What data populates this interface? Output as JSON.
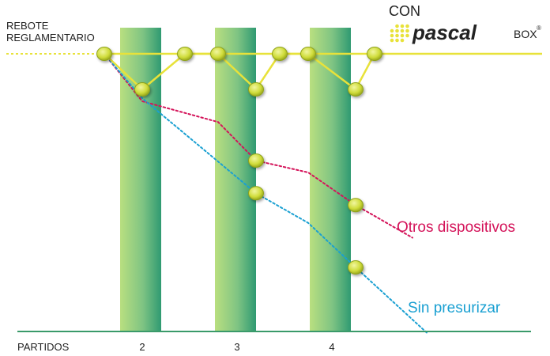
{
  "chart_data": {
    "type": "line",
    "ylabel_lines": [
      "REBOTE",
      "REGLAMENTARIO"
    ],
    "xlabel": "PARTIDOS",
    "categories": [
      "2",
      "3",
      "4"
    ],
    "brand": {
      "prefix": "CON",
      "name": "pascal",
      "suffix": "BOX",
      "mark": "®"
    },
    "series": [
      {
        "name": "Con pascal BOX",
        "color": "#e8e23a",
        "style": "solid",
        "x": [
          1.6,
          2.0,
          2.45,
          2.8,
          3.2,
          3.45,
          3.75,
          4.25,
          4.45
        ],
        "y": [
          0,
          -0.6,
          0,
          0,
          -0.6,
          0,
          0,
          -0.6,
          0
        ]
      },
      {
        "name": "Otros dispositivos",
        "color": "#d4145a",
        "style": "dotted",
        "x": [
          1.6,
          2.0,
          2.8,
          3.2,
          3.75,
          4.25,
          4.85
        ],
        "y": [
          0,
          -0.8,
          -1.15,
          -1.8,
          -2.0,
          -2.55,
          -3.1
        ]
      },
      {
        "name": "Sin presurizar",
        "color": "#1aa0d2",
        "style": "dotted",
        "x": [
          1.6,
          2.0,
          3.2,
          3.75,
          4.25,
          5.0
        ],
        "y": [
          0,
          -0.75,
          -2.35,
          -2.85,
          -3.6,
          -4.7
        ]
      }
    ],
    "balls": [
      {
        "x": 1.6,
        "y": 0
      },
      {
        "x": 2.0,
        "y": -0.6
      },
      {
        "x": 2.45,
        "y": 0
      },
      {
        "x": 2.8,
        "y": 0
      },
      {
        "x": 3.2,
        "y": -0.6
      },
      {
        "x": 3.45,
        "y": 0
      },
      {
        "x": 3.75,
        "y": 0
      },
      {
        "x": 4.25,
        "y": -0.6
      },
      {
        "x": 4.45,
        "y": 0
      },
      {
        "x": 3.2,
        "y": -1.8
      },
      {
        "x": 3.2,
        "y": -2.35
      },
      {
        "x": 4.25,
        "y": -2.55
      },
      {
        "x": 4.25,
        "y": -3.6
      }
    ],
    "colors": {
      "band": "#3aa072",
      "baseline_yellow": "#e8e23a",
      "axis": "#3a9a6a",
      "ball": "#d8e64a",
      "ball_dark": "#8fa21a",
      "text": "#222222"
    }
  }
}
